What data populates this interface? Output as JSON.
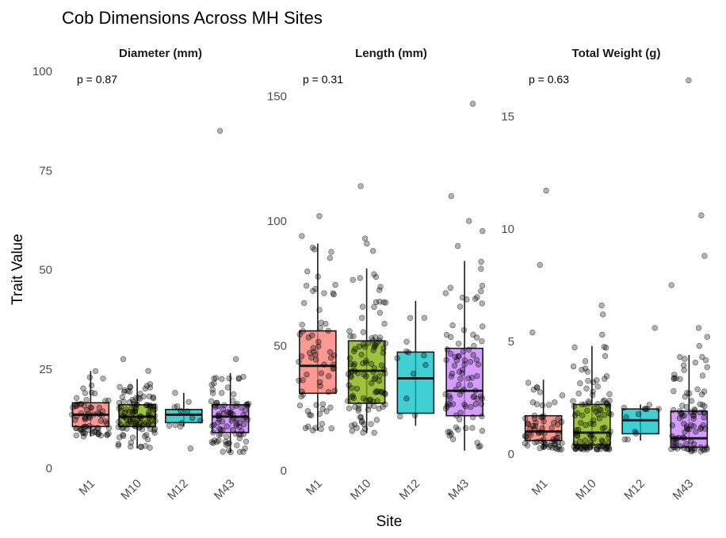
{
  "chart_data": {
    "type": "box",
    "title": "Cob Dimensions Across MH Sites",
    "xlabel": "Site",
    "ylabel": "Trait Value",
    "categories": [
      "M1",
      "M10",
      "M12",
      "M43"
    ],
    "colors": {
      "M1": "#F8766D",
      "M10": "#7CAE00",
      "M12": "#00BFC4",
      "M43": "#C77CFF"
    },
    "grid": false,
    "facets": [
      {
        "label": "Diameter (mm)",
        "p_value_label": "p = 0.87",
        "ylim": [
          0,
          100
        ],
        "yticks": [
          0,
          25,
          50,
          75,
          100
        ],
        "boxes": [
          {
            "site": "M1",
            "whisker_low": 8,
            "q1": 10.5,
            "median": 13.5,
            "q3": 16.5,
            "whisker_high": 24.5,
            "outliers": [],
            "n": 70
          },
          {
            "site": "M10",
            "whisker_low": 5,
            "q1": 10.5,
            "median": 13,
            "q3": 16,
            "whisker_high": 22.5,
            "outliers": [
              24.5,
              27.5
            ],
            "n": 110
          },
          {
            "site": "M12",
            "whisker_low": 10.5,
            "q1": 11.5,
            "median": 13.5,
            "q3": 14.8,
            "whisker_high": 19,
            "outliers": [
              5
            ],
            "n": 12
          },
          {
            "site": "M43",
            "whisker_low": 4,
            "q1": 9,
            "median": 13,
            "q3": 16,
            "whisker_high": 24,
            "outliers": [
              27.5,
              85
            ],
            "n": 90
          }
        ]
      },
      {
        "label": "Length (mm)",
        "p_value_label": "p = 0.31",
        "ylim": [
          0,
          160
        ],
        "yticks": [
          0,
          50,
          100,
          150
        ],
        "boxes": [
          {
            "site": "M1",
            "whisker_low": 16,
            "q1": 31,
            "median": 42,
            "q3": 56,
            "whisker_high": 91,
            "outliers": [
              94,
              102
            ],
            "n": 70
          },
          {
            "site": "M10",
            "whisker_low": 15,
            "q1": 27,
            "median": 40,
            "q3": 52,
            "whisker_high": 81,
            "outliers": [
              88,
              91,
              93,
              114
            ],
            "n": 110
          },
          {
            "site": "M12",
            "whisker_low": 18,
            "q1": 23,
            "median": 37,
            "q3": 47.5,
            "whisker_high": 68,
            "outliers": [],
            "n": 12
          },
          {
            "site": "M43",
            "whisker_low": 8,
            "q1": 22,
            "median": 32,
            "q3": 49,
            "whisker_high": 84,
            "outliers": [
              90,
              96,
              100,
              110,
              147
            ],
            "n": 90
          }
        ]
      },
      {
        "label": "Total Weight (g)",
        "p_value_label": "p = 0.63",
        "ylim": [
          0,
          17
        ],
        "yticks": [
          0,
          5,
          10,
          15
        ],
        "boxes": [
          {
            "site": "M1",
            "whisker_low": 0.2,
            "q1": 0.6,
            "median": 1.0,
            "q3": 1.7,
            "whisker_high": 3.3,
            "outliers": [
              5.4,
              8.4,
              11.7
            ],
            "n": 70
          },
          {
            "site": "M10",
            "whisker_low": 0.2,
            "q1": 0.4,
            "median": 0.95,
            "q3": 2.2,
            "whisker_high": 4.8,
            "outliers": [
              5.3,
              6.2,
              6.6
            ],
            "n": 110
          },
          {
            "site": "M12",
            "whisker_low": 0.6,
            "q1": 0.9,
            "median": 1.5,
            "q3": 2.0,
            "whisker_high": 2.2,
            "outliers": [
              5.6
            ],
            "n": 12
          },
          {
            "site": "M43",
            "whisker_low": 0.1,
            "q1": 0.3,
            "median": 0.7,
            "q3": 1.9,
            "whisker_high": 4.4,
            "outliers": [
              4.8,
              5.2,
              5.6,
              7.5,
              8.8,
              10.6,
              16.6
            ],
            "n": 90
          }
        ]
      }
    ]
  }
}
